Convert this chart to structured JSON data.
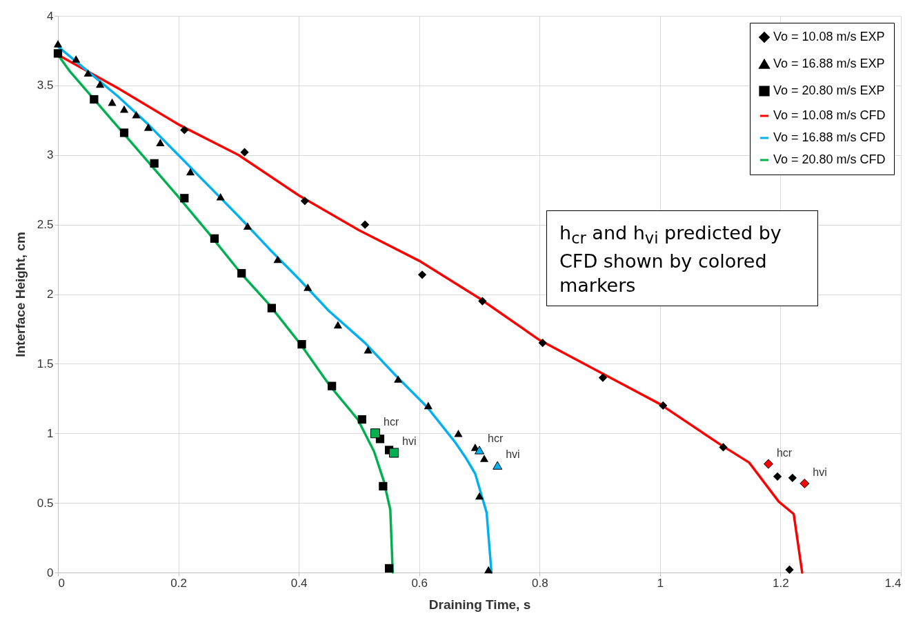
{
  "chart_data": {
    "type": "scatter",
    "xlabel": "Draining Time, s",
    "ylabel": "Interface Height, cm",
    "xlim": [
      0,
      1.4
    ],
    "xticks": [
      0,
      0.2,
      0.4,
      0.6,
      0.8,
      1,
      1.2,
      1.4
    ],
    "ylim": [
      0,
      4
    ],
    "yticks": [
      0,
      0.5,
      1,
      1.5,
      2,
      2.5,
      3,
      3.5,
      4
    ],
    "grid": true,
    "legend": "top right",
    "series": [
      {
        "name": "Vo = 10.08 m/s EXP",
        "type": "scatter",
        "marker": "diamond",
        "color": "#000000",
        "x": [
          0.21,
          0.31,
          0.41,
          0.51,
          0.605,
          0.705,
          0.805,
          0.905,
          1.005,
          1.105,
          1.195,
          1.22,
          1.215
        ],
        "values": [
          3.18,
          3.02,
          2.67,
          2.5,
          2.14,
          1.95,
          1.65,
          1.4,
          1.2,
          0.9,
          0.69,
          0.68,
          0.02
        ]
      },
      {
        "name": "Vo = 16.88 m/s EXP",
        "type": "scatter",
        "marker": "triangle",
        "color": "#000000",
        "x": [
          0,
          0.03,
          0.05,
          0.07,
          0.09,
          0.11,
          0.13,
          0.15,
          0.17,
          0.22,
          0.27,
          0.315,
          0.365,
          0.415,
          0.465,
          0.515,
          0.565,
          0.615,
          0.665,
          0.693,
          0.708,
          0.7,
          0.715
        ],
        "values": [
          3.8,
          3.69,
          3.59,
          3.51,
          3.38,
          3.33,
          3.29,
          3.2,
          3.09,
          2.88,
          2.7,
          2.49,
          2.25,
          2.05,
          1.78,
          1.6,
          1.39,
          1.2,
          1.0,
          0.9,
          0.82,
          0.55,
          0.02
        ]
      },
      {
        "name": "Vo = 20.80 m/s EXP",
        "type": "scatter",
        "marker": "square",
        "color": "#000000",
        "x": [
          0,
          0.06,
          0.11,
          0.16,
          0.21,
          0.26,
          0.305,
          0.355,
          0.405,
          0.455,
          0.505,
          0.535,
          0.55,
          0.54,
          0.55
        ],
        "values": [
          3.73,
          3.4,
          3.16,
          2.94,
          2.69,
          2.4,
          2.15,
          1.9,
          1.64,
          1.34,
          1.1,
          0.96,
          0.88,
          0.62,
          0.03
        ]
      },
      {
        "name": "Vo = 10.08 m/s CFD",
        "type": "line",
        "marker": "none",
        "color": "#ff0000",
        "x": [
          0,
          0.1,
          0.2,
          0.3,
          0.4,
          0.5,
          0.6,
          0.7,
          0.8,
          0.9,
          1.0,
          1.1,
          1.148,
          1.197,
          1.222,
          1.236
        ],
        "values": [
          3.72,
          3.48,
          3.22,
          3.0,
          2.71,
          2.46,
          2.24,
          1.97,
          1.67,
          1.44,
          1.21,
          0.92,
          0.79,
          0.51,
          0.42,
          0
        ]
      },
      {
        "name": "Vo = 16.88 m/s CFD",
        "type": "line",
        "marker": "none",
        "color": "#00b0f0",
        "x": [
          0,
          0.05,
          0.1,
          0.15,
          0.2,
          0.25,
          0.3,
          0.35,
          0.4,
          0.45,
          0.51,
          0.56,
          0.613,
          0.659,
          0.678,
          0.693,
          0.712,
          0.72
        ],
        "values": [
          3.78,
          3.6,
          3.42,
          3.22,
          3.0,
          2.78,
          2.56,
          2.33,
          2.11,
          1.88,
          1.65,
          1.42,
          1.19,
          0.94,
          0.82,
          0.71,
          0.43,
          0
        ]
      },
      {
        "name": "Vo = 20.80 m/s CFD",
        "type": "line",
        "marker": "none",
        "color": "#00b050",
        "x": [
          0,
          0.02,
          0.05,
          0.1,
          0.15,
          0.2,
          0.25,
          0.304,
          0.35,
          0.403,
          0.452,
          0.498,
          0.525,
          0.541,
          0.552,
          0.556
        ],
        "values": [
          3.72,
          3.6,
          3.45,
          3.2,
          2.95,
          2.7,
          2.44,
          2.15,
          1.93,
          1.64,
          1.34,
          1.1,
          0.87,
          0.66,
          0.45,
          0
        ]
      },
      {
        "type": "scatter",
        "marker": "square",
        "color": "#00b050",
        "x": [
          0.527,
          0.558
        ],
        "values": [
          1.0,
          0.86
        ]
      },
      {
        "type": "scatter",
        "marker": "triangle",
        "color": "#00b0f0",
        "x": [
          0.7,
          0.73
        ],
        "values": [
          0.88,
          0.77
        ]
      },
      {
        "type": "scatter",
        "marker": "diamond",
        "color": "#ff0000",
        "x": [
          1.18,
          1.24
        ],
        "values": [
          0.78,
          0.64
        ]
      }
    ],
    "annotations": [
      {
        "text": "hcr",
        "x": 0.527,
        "y": 1.0
      },
      {
        "text": "hvi",
        "x": 0.558,
        "y": 0.86
      },
      {
        "text": "hcr",
        "x": 0.7,
        "y": 0.88
      },
      {
        "text": "hvi",
        "x": 0.73,
        "y": 0.77
      },
      {
        "text": "hcr",
        "x": 1.18,
        "y": 0.78
      },
      {
        "text": "hvi",
        "x": 1.24,
        "y": 0.64
      },
      "h$_{cr}$ and h$_{vi}$ predicted by CFD shown by colored markers"
    ]
  }
}
